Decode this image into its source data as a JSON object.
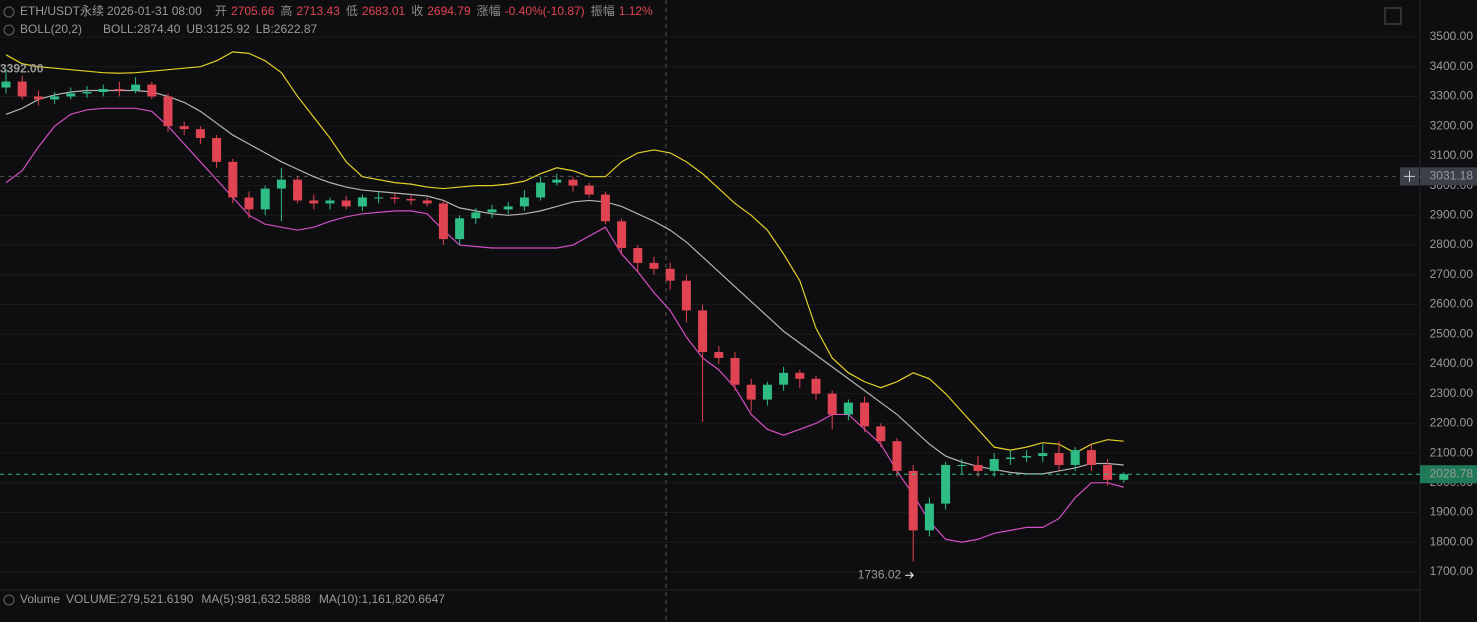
{
  "chart_data": {
    "type": "candlestick",
    "title": "ETH/USDT永续",
    "time": "2026-01-31 08:00",
    "fields": [
      [
        "开",
        "2705.66"
      ],
      [
        "高",
        "2713.43"
      ],
      [
        "低",
        "2683.01"
      ],
      [
        "收",
        "2694.79"
      ],
      [
        "涨幅",
        "-0.40%(-10.87)"
      ],
      [
        "振幅",
        "1.12%"
      ]
    ],
    "indicator": {
      "label": "BOLL(20,2)",
      "texts": [
        "BOLL:2874.40",
        "UB:3125.92",
        "LB:2622.87"
      ]
    },
    "volume": {
      "label": "Volume",
      "texts": [
        "VOLUME:279,521.6190",
        "MA(5):981,632.5888",
        "MA(10):1,161,820.6647"
      ]
    },
    "ylim": [
      1639.3,
      3624.5
    ],
    "yticks": [
      {
        "value": 1700,
        "label": "1700.00"
      },
      {
        "value": 1800,
        "label": "1800.00"
      },
      {
        "value": 1900,
        "label": "1900.00"
      },
      {
        "value": 2000,
        "label": "2000.00"
      },
      {
        "value": 2100,
        "label": "2100.00"
      },
      {
        "value": 2200,
        "label": "2200.00"
      },
      {
        "value": 2300,
        "label": "2300.00"
      },
      {
        "value": 2400,
        "label": "2400.00"
      },
      {
        "value": 2500,
        "label": "2500.00"
      },
      {
        "value": 2600,
        "label": "2600.00"
      },
      {
        "value": 2700,
        "label": "2700.00"
      },
      {
        "value": 2800,
        "label": "2800.00"
      },
      {
        "value": 2900,
        "label": "2900.00"
      },
      {
        "value": 3000,
        "label": "3000.00"
      },
      {
        "value": 3100,
        "label": "3100.00"
      },
      {
        "value": 3200,
        "label": "3200.00"
      },
      {
        "value": 3300,
        "label": "3300.00"
      },
      {
        "value": 3400,
        "label": "3400.00"
      },
      {
        "value": 3500,
        "label": "3500.00"
      }
    ],
    "grid": true,
    "up_color": "#2ebd85",
    "down_color": "#e04452",
    "open": [
      3330,
      3350,
      3300,
      3290,
      3300,
      3310,
      3315,
      3325,
      3320,
      3340,
      3300,
      3200,
      3190,
      3160,
      3080,
      2960,
      2920,
      2990,
      3020,
      2950,
      2940,
      2950,
      2930,
      2960,
      2960,
      2955,
      2950,
      2940,
      2820,
      2890,
      2910,
      2920,
      2930,
      2960,
      3010,
      3020,
      3000,
      2970,
      2880,
      2790,
      2740,
      2720,
      2680,
      2580,
      2440,
      2420,
      2330,
      2280,
      2330,
      2370,
      2350,
      2300,
      2230,
      2270,
      2190,
      2140,
      2040,
      1840,
      1930,
      2060,
      2060,
      2040,
      2080,
      2085,
      2090,
      2100,
      2060,
      2110,
      2060,
      2010
    ],
    "high": [
      3392,
      3370,
      3320,
      3315,
      3330,
      3335,
      3340,
      3350,
      3365,
      3350,
      3310,
      3215,
      3200,
      3170,
      3090,
      2980,
      3000,
      3060,
      3030,
      2970,
      2960,
      2965,
      2970,
      2980,
      2975,
      2970,
      2960,
      2950,
      2900,
      2925,
      2935,
      2945,
      2985,
      3030,
      3040,
      3030,
      3010,
      2980,
      2890,
      2800,
      2760,
      2740,
      2700,
      2600,
      2460,
      2440,
      2350,
      2340,
      2390,
      2380,
      2360,
      2310,
      2280,
      2290,
      2200,
      2150,
      2060,
      1950,
      2070,
      2080,
      2090,
      2100,
      2110,
      2110,
      2130,
      2140,
      2120,
      2130,
      2080,
      2035
    ],
    "low": [
      3310,
      3290,
      3270,
      3275,
      3290,
      3295,
      3300,
      3300,
      3310,
      3290,
      3180,
      3170,
      3140,
      3060,
      2940,
      2890,
      2900,
      2880,
      2940,
      2920,
      2920,
      2920,
      2915,
      2940,
      2940,
      2935,
      2930,
      2800,
      2800,
      2870,
      2890,
      2905,
      2915,
      2950,
      3000,
      2980,
      2960,
      2870,
      2770,
      2710,
      2700,
      2650,
      2540,
      2205,
      2400,
      2310,
      2240,
      2260,
      2310,
      2320,
      2280,
      2180,
      2210,
      2170,
      2120,
      2020,
      1736.02,
      1820,
      1910,
      2030,
      2020,
      2020,
      2060,
      2070,
      2070,
      2040,
      2040,
      2040,
      1990,
      2000
    ],
    "close": [
      3350,
      3300,
      3290,
      3300,
      3310,
      3315,
      3325,
      3320,
      3340,
      3300,
      3200,
      3190,
      3160,
      3080,
      2960,
      2920,
      2990,
      3020,
      2950,
      2940,
      2950,
      2930,
      2960,
      2960,
      2955,
      2950,
      2940,
      2820,
      2890,
      2910,
      2920,
      2930,
      2960,
      3010,
      3020,
      3000,
      2970,
      2880,
      2790,
      2740,
      2720,
      2680,
      2580,
      2440,
      2420,
      2330,
      2280,
      2330,
      2370,
      2350,
      2300,
      2230,
      2270,
      2190,
      2140,
      2040,
      1840,
      1930,
      2060,
      2060,
      2040,
      2080,
      2085,
      2090,
      2100,
      2060,
      2110,
      2060,
      2010,
      2028.78
    ],
    "bands": [
      {
        "color": "#e3d027",
        "values": [
          3440,
          3410,
          3400,
          3395,
          3390,
          3385,
          3380,
          3378,
          3380,
          3385,
          3390,
          3395,
          3400,
          3420,
          3450,
          3445,
          3420,
          3380,
          3300,
          3230,
          3160,
          3080,
          3030,
          3020,
          3010,
          3005,
          2995,
          2990,
          2995,
          3000,
          3000,
          3005,
          3015,
          3040,
          3060,
          3050,
          3030,
          3030,
          3080,
          3110,
          3120,
          3110,
          3080,
          3040,
          2990,
          2940,
          2900,
          2850,
          2770,
          2680,
          2520,
          2420,
          2370,
          2340,
          2320,
          2340,
          2370,
          2350,
          2300,
          2240,
          2180,
          2120,
          2110,
          2120,
          2135,
          2130,
          2100,
          2130,
          2145,
          2140
        ]
      },
      {
        "color": "#b4b4b4",
        "values": [
          3240,
          3260,
          3290,
          3305,
          3315,
          3320,
          3320,
          3320,
          3320,
          3315,
          3300,
          3280,
          3250,
          3210,
          3170,
          3140,
          3110,
          3080,
          3055,
          3030,
          3010,
          2995,
          2985,
          2980,
          2975,
          2970,
          2965,
          2950,
          2925,
          2915,
          2905,
          2900,
          2905,
          2915,
          2930,
          2945,
          2950,
          2945,
          2930,
          2905,
          2880,
          2850,
          2810,
          2760,
          2710,
          2660,
          2610,
          2560,
          2510,
          2470,
          2430,
          2390,
          2350,
          2310,
          2270,
          2230,
          2180,
          2130,
          2090,
          2070,
          2055,
          2045,
          2035,
          2030,
          2030,
          2040,
          2050,
          2065,
          2065,
          2060
        ]
      },
      {
        "color": "#d34fc4",
        "values": [
          3010,
          3050,
          3130,
          3200,
          3240,
          3255,
          3260,
          3260,
          3260,
          3250,
          3200,
          3140,
          3080,
          3020,
          2960,
          2900,
          2870,
          2860,
          2850,
          2860,
          2880,
          2895,
          2905,
          2910,
          2915,
          2915,
          2905,
          2850,
          2800,
          2795,
          2790,
          2790,
          2790,
          2790,
          2790,
          2800,
          2830,
          2860,
          2770,
          2710,
          2640,
          2580,
          2490,
          2420,
          2380,
          2320,
          2230,
          2180,
          2160,
          2180,
          2200,
          2230,
          2230,
          2180,
          2130,
          2040,
          1960,
          1870,
          1810,
          1800,
          1810,
          1830,
          1840,
          1850,
          1850,
          1880,
          1950,
          2000,
          2000,
          1985
        ]
      }
    ],
    "high_annotation": {
      "value": 3392,
      "label": "3392.00"
    },
    "low_annotation": {
      "value": 1736.02,
      "label": "1736.02"
    },
    "crosshair_price": 3031.18
  }
}
